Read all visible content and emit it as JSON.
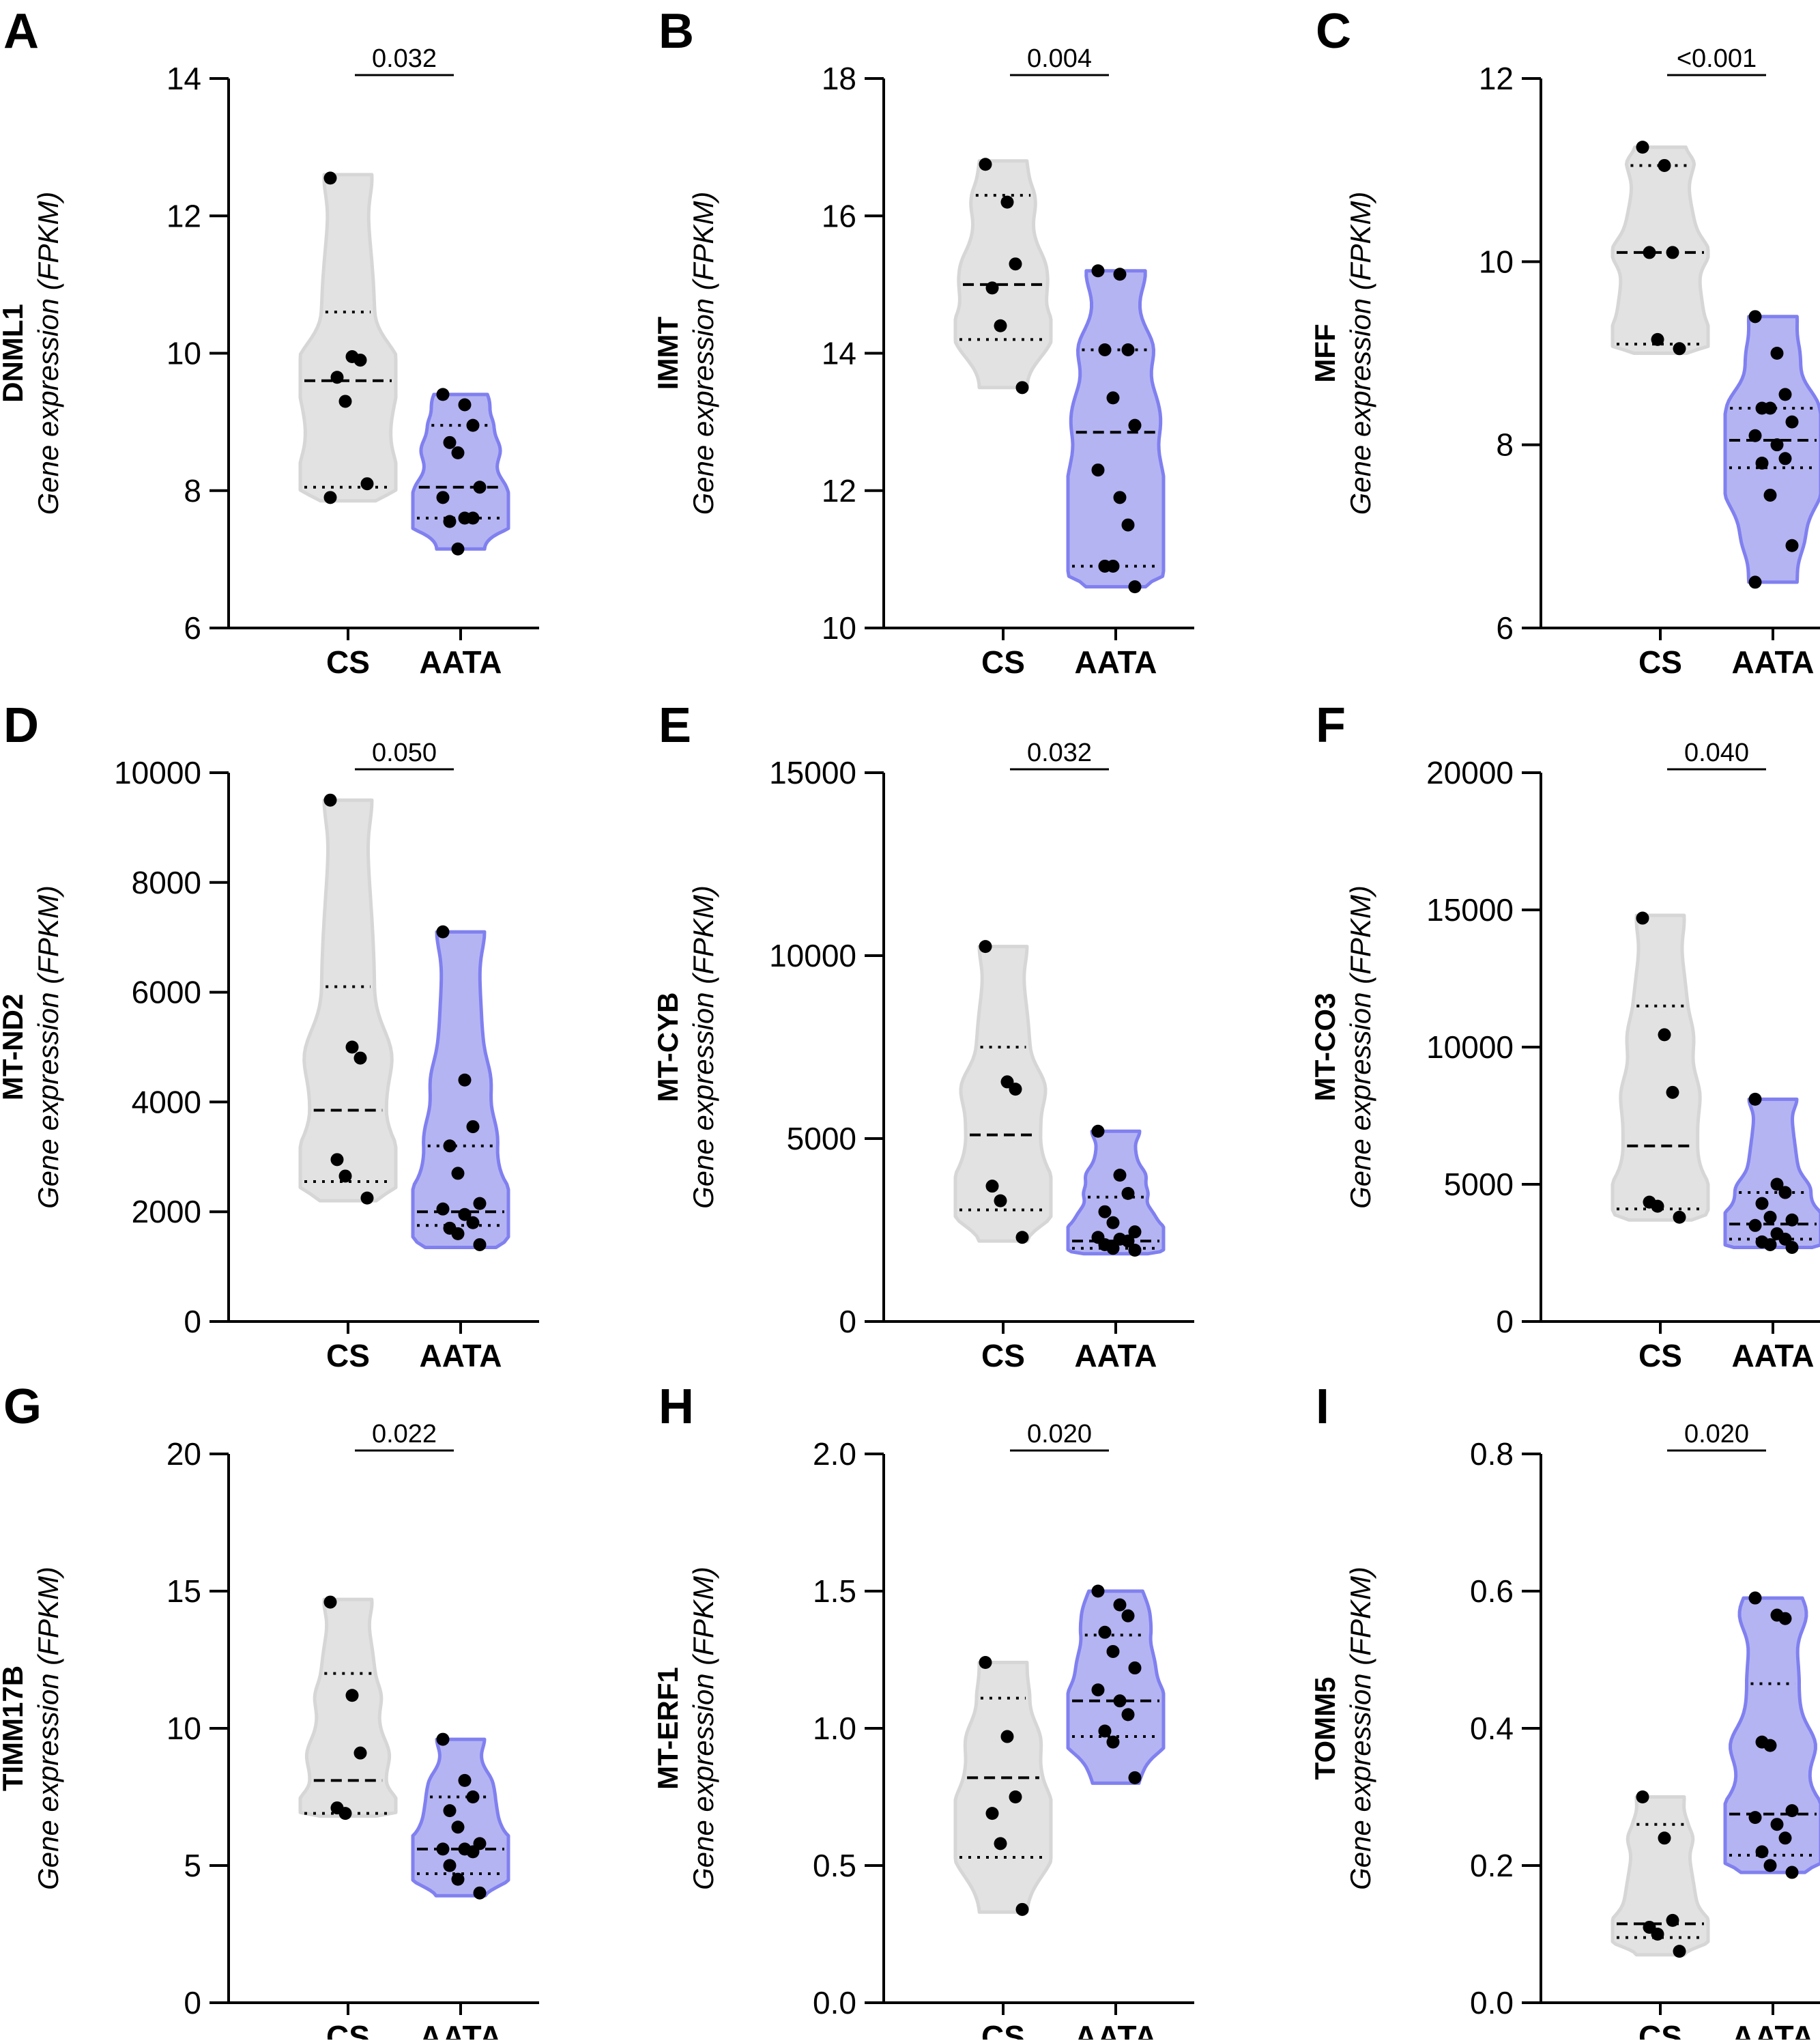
{
  "chart_data": [
    {
      "type": "violin",
      "panel": "A",
      "gene": "DNML1",
      "ylabel": "Gene expression (FPKM)",
      "ylim": [
        6,
        14
      ],
      "yticks": [
        6,
        8,
        10,
        12,
        14
      ],
      "tick_labels": [
        "6",
        "8",
        "10",
        "12",
        "14"
      ],
      "categories": [
        "CS",
        "AATA"
      ],
      "p_value": "0.032",
      "groups": [
        {
          "name": "CS",
          "color": "#e2e2e2",
          "min": 7.85,
          "max": 12.6,
          "median": 9.6,
          "q1": 8.05,
          "q3": 10.6,
          "points": [
            12.55,
            9.95,
            9.9,
            9.65,
            9.3,
            8.1,
            7.9
          ]
        },
        {
          "name": "AATA",
          "color": "#b4b4f2",
          "min": 7.15,
          "max": 9.4,
          "median": 8.05,
          "q1": 7.6,
          "q3": 8.95,
          "points": [
            9.4,
            9.25,
            8.95,
            8.7,
            8.55,
            8.05,
            7.9,
            7.6,
            7.6,
            7.55,
            7.15
          ]
        }
      ]
    },
    {
      "type": "violin",
      "panel": "B",
      "gene": "IMMT",
      "ylabel": "Gene expression (FPKM)",
      "ylim": [
        10,
        18
      ],
      "yticks": [
        10,
        12,
        14,
        16,
        18
      ],
      "tick_labels": [
        "10",
        "12",
        "14",
        "16",
        "18"
      ],
      "categories": [
        "CS",
        "AATA"
      ],
      "p_value": "0.004",
      "groups": [
        {
          "name": "CS",
          "color": "#e2e2e2",
          "min": 13.5,
          "max": 16.8,
          "median": 15.0,
          "q1": 14.2,
          "q3": 16.3,
          "points": [
            16.75,
            16.2,
            15.3,
            14.95,
            14.4,
            13.5
          ]
        },
        {
          "name": "AATA",
          "color": "#b4b4f2",
          "min": 10.6,
          "max": 15.2,
          "median": 12.85,
          "q1": 10.9,
          "q3": 14.05,
          "points": [
            15.2,
            15.15,
            14.05,
            14.05,
            13.35,
            12.95,
            12.3,
            11.9,
            11.5,
            10.9,
            10.9,
            10.6
          ]
        }
      ]
    },
    {
      "type": "violin",
      "panel": "C",
      "gene": "MFF",
      "ylabel": "Gene expression (FPKM)",
      "ylim": [
        6,
        12
      ],
      "yticks": [
        6,
        8,
        10,
        12
      ],
      "tick_labels": [
        "6",
        "8",
        "10",
        "12"
      ],
      "categories": [
        "CS",
        "AATA"
      ],
      "p_value": "<0.001",
      "groups": [
        {
          "name": "CS",
          "color": "#e2e2e2",
          "min": 9.0,
          "max": 11.25,
          "median": 10.1,
          "q1": 9.1,
          "q3": 11.05,
          "points": [
            11.25,
            11.05,
            10.1,
            10.1,
            9.15,
            9.05
          ]
        },
        {
          "name": "AATA",
          "color": "#b4b4f2",
          "min": 6.5,
          "max": 9.4,
          "median": 8.05,
          "q1": 7.75,
          "q3": 8.4,
          "points": [
            9.4,
            9.0,
            8.55,
            8.4,
            8.4,
            8.25,
            8.1,
            8.0,
            7.85,
            7.8,
            7.45,
            6.9,
            6.5
          ]
        }
      ]
    },
    {
      "type": "violin",
      "panel": "D",
      "gene": "MT-ND2",
      "ylabel": "Gene expression (FPKM)",
      "ylim": [
        0,
        10000
      ],
      "yticks": [
        0,
        2000,
        4000,
        6000,
        8000,
        10000
      ],
      "tick_labels": [
        "0",
        "2000",
        "4000",
        "6000",
        "8000",
        "10000"
      ],
      "categories": [
        "CS",
        "AATA"
      ],
      "p_value": "0.050",
      "groups": [
        {
          "name": "CS",
          "color": "#e2e2e2",
          "min": 2200,
          "max": 9500,
          "median": 3850,
          "q1": 2550,
          "q3": 6100,
          "points": [
            9500,
            5000,
            4800,
            2950,
            2650,
            2250
          ]
        },
        {
          "name": "AATA",
          "color": "#b4b4f2",
          "min": 1350,
          "max": 7100,
          "median": 2000,
          "q1": 1750,
          "q3": 3200,
          "points": [
            7100,
            4400,
            3550,
            3200,
            2700,
            2150,
            2050,
            1950,
            1800,
            1700,
            1600,
            1400
          ]
        }
      ]
    },
    {
      "type": "violin",
      "panel": "E",
      "gene": "MT-CYB",
      "ylabel": "Gene expression (FPKM)",
      "ylim": [
        0,
        15000
      ],
      "yticks": [
        0,
        5000,
        10000,
        15000
      ],
      "tick_labels": [
        "0",
        "5000",
        "10000",
        "15000"
      ],
      "categories": [
        "CS",
        "AATA"
      ],
      "p_value": "0.032",
      "groups": [
        {
          "name": "CS",
          "color": "#e2e2e2",
          "min": 2200,
          "max": 10250,
          "median": 5100,
          "q1": 3050,
          "q3": 7500,
          "points": [
            10250,
            6550,
            6350,
            3700,
            3300,
            2300
          ]
        },
        {
          "name": "AATA",
          "color": "#b4b4f2",
          "min": 1850,
          "max": 5200,
          "median": 2200,
          "q1": 2000,
          "q3": 3400,
          "points": [
            5200,
            4000,
            3500,
            3000,
            2700,
            2450,
            2300,
            2250,
            2200,
            2100,
            2000,
            1950
          ]
        }
      ]
    },
    {
      "type": "violin",
      "panel": "F",
      "gene": "MT-CO3",
      "ylabel": "Gene expression (FPKM)",
      "ylim": [
        0,
        20000
      ],
      "yticks": [
        0,
        5000,
        10000,
        15000,
        20000
      ],
      "tick_labels": [
        "0",
        "5000",
        "10000",
        "15000",
        "20000"
      ],
      "categories": [
        "CS",
        "AATA"
      ],
      "p_value": "0.040",
      "groups": [
        {
          "name": "CS",
          "color": "#e2e2e2",
          "min": 3700,
          "max": 14800,
          "median": 6400,
          "q1": 4100,
          "q3": 11500,
          "points": [
            14700,
            10450,
            8350,
            4350,
            4200,
            3800
          ]
        },
        {
          "name": "AATA",
          "color": "#b4b4f2",
          "min": 2700,
          "max": 8100,
          "median": 3550,
          "q1": 3000,
          "q3": 4700,
          "points": [
            8100,
            5000,
            4700,
            4300,
            3800,
            3700,
            3500,
            3200,
            3000,
            2900,
            2800,
            2700
          ]
        }
      ]
    },
    {
      "type": "violin",
      "panel": "G",
      "gene": "TIMM17B",
      "ylabel": "Gene expression (FPKM)",
      "ylim": [
        0,
        20
      ],
      "yticks": [
        0,
        5,
        10,
        15,
        20
      ],
      "tick_labels": [
        "0",
        "5",
        "10",
        "15",
        "20"
      ],
      "categories": [
        "CS",
        "AATA"
      ],
      "p_value": "0.022",
      "groups": [
        {
          "name": "CS",
          "color": "#e2e2e2",
          "min": 6.8,
          "max": 14.7,
          "median": 8.1,
          "q1": 6.9,
          "q3": 12.0,
          "points": [
            14.6,
            11.2,
            9.1,
            7.1,
            6.9
          ]
        },
        {
          "name": "AATA",
          "color": "#b4b4f2",
          "min": 3.9,
          "max": 9.6,
          "median": 5.6,
          "q1": 4.7,
          "q3": 7.5,
          "points": [
            9.6,
            8.1,
            7.5,
            7.0,
            6.4,
            5.8,
            5.6,
            5.6,
            5.5,
            5.0,
            4.5,
            4.0
          ]
        }
      ]
    },
    {
      "type": "violin",
      "panel": "H",
      "gene": "MT-ERF1",
      "ylabel": "Gene expression (FPKM)",
      "ylim": [
        0.0,
        2.0
      ],
      "yticks": [
        0.0,
        0.5,
        1.0,
        1.5,
        2.0
      ],
      "tick_labels": [
        "0.0",
        "0.5",
        "1.0",
        "1.5",
        "2.0"
      ],
      "categories": [
        "CS",
        "AATA"
      ],
      "p_value": "0.020",
      "groups": [
        {
          "name": "CS",
          "color": "#e2e2e2",
          "min": 0.33,
          "max": 1.24,
          "median": 0.82,
          "q1": 0.53,
          "q3": 1.11,
          "points": [
            1.24,
            0.97,
            0.75,
            0.69,
            0.58,
            0.34
          ]
        },
        {
          "name": "AATA",
          "color": "#b4b4f2",
          "min": 0.8,
          "max": 1.5,
          "median": 1.1,
          "q1": 0.97,
          "q3": 1.34,
          "points": [
            1.5,
            1.45,
            1.41,
            1.35,
            1.28,
            1.22,
            1.14,
            1.1,
            1.05,
            0.99,
            0.95,
            0.82
          ]
        }
      ]
    },
    {
      "type": "violin",
      "panel": "I",
      "gene": "TOMM5",
      "ylabel": "Gene expression (FPKM)",
      "ylim": [
        0.0,
        0.8
      ],
      "yticks": [
        0.0,
        0.2,
        0.4,
        0.6,
        0.8
      ],
      "tick_labels": [
        "0.0",
        "0.2",
        "0.4",
        "0.6",
        "0.8"
      ],
      "categories": [
        "CS",
        "AATA"
      ],
      "p_value": "0.020",
      "groups": [
        {
          "name": "CS",
          "color": "#e2e2e2",
          "min": 0.07,
          "max": 0.3,
          "median": 0.115,
          "q1": 0.095,
          "q3": 0.26,
          "points": [
            0.3,
            0.24,
            0.12,
            0.11,
            0.1,
            0.075
          ]
        },
        {
          "name": "AATA",
          "color": "#b4b4f2",
          "min": 0.19,
          "max": 0.59,
          "median": 0.275,
          "q1": 0.215,
          "q3": 0.465,
          "points": [
            0.59,
            0.565,
            0.56,
            0.38,
            0.375,
            0.28,
            0.27,
            0.26,
            0.24,
            0.22,
            0.2,
            0.19
          ]
        }
      ]
    }
  ]
}
